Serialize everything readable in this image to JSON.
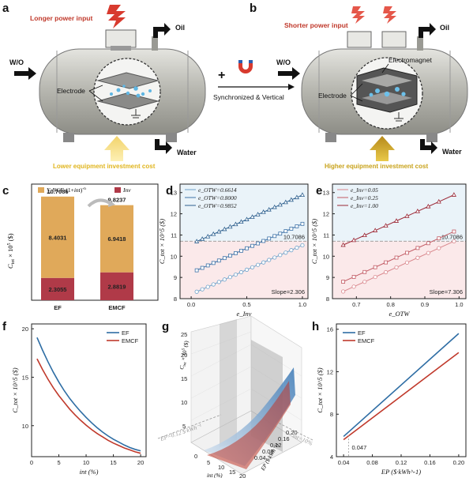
{
  "panel_a": {
    "letter": "a",
    "power_label": "Longer power input",
    "oil_label": "Oil",
    "wo_label": "W/O",
    "water_label": "Water",
    "electrode_label": "Electrode",
    "cost_label": "Lower equipment investment cost"
  },
  "panel_b": {
    "letter": "b",
    "power_label": "Shorter power input",
    "oil_label": "Oil",
    "wo_label": "W/O",
    "water_label": "Water",
    "electromagnet_label": "Electromagnet",
    "electrode_label": "Electrode",
    "cost_label": "Higher equipment investment cost"
  },
  "transition": {
    "plus": "+",
    "label": "Synchronized & Vertical"
  },
  "colors": {
    "ef_blue": "#2e6da4",
    "emcf_red": "#c0392b",
    "bar_orange": "#e0a95a",
    "bar_red": "#b03a48",
    "light_blue": "#6fa1c9",
    "med_blue": "#3f73a8",
    "dark_blue": "#2d5f8e",
    "pink": "#d9868c",
    "red_mid": "#c25a63",
    "red_dark": "#9b2735",
    "cost_gold": "#c8a21a",
    "power_red": "#c0392b"
  },
  "chart_data": [
    {
      "panel": "c",
      "type": "bar",
      "stacked": true,
      "categories": [
        "EF",
        "EMCF"
      ],
      "ylabel": "C_tot × 10^5 ($)",
      "legend": [
        "∑ NCF·(1+int)^-n",
        "Inv"
      ],
      "series": [
        {
          "name": "Inv",
          "values": [
            2.3055,
            2.8819
          ],
          "labels": [
            "2.3055",
            "2.8819"
          ]
        },
        {
          "name": "∑ NCF·(1+int)^-n",
          "values": [
            8.4031,
            6.9418
          ],
          "labels": [
            "8.4031",
            "6.9418"
          ]
        }
      ],
      "totals": [
        "10.7086",
        "9.8237"
      ],
      "ylim": [
        0,
        12
      ]
    },
    {
      "panel": "d",
      "type": "line",
      "xlabel": "e_Inv",
      "ylabel": "C_tot × 10^5 ($)",
      "xlim": [
        -0.1,
        1.05
      ],
      "ylim": [
        8,
        13.4
      ],
      "xticks": [
        "0.0",
        "0.5",
        "1.0"
      ],
      "yticks": [
        "8",
        "9",
        "10",
        "11",
        "12",
        "13"
      ],
      "x": [
        0.05,
        0.1,
        0.15,
        0.2,
        0.25,
        0.3,
        0.35,
        0.4,
        0.45,
        0.5,
        0.55,
        0.6,
        0.65,
        0.7,
        0.75,
        0.8,
        0.85,
        0.9,
        0.95,
        1.0
      ],
      "series": [
        {
          "name": "e_OTW=0.6614",
          "intercept": 8.21,
          "slope": 2.306
        },
        {
          "name": "e_OTW=0.8000",
          "intercept": 9.22,
          "slope": 2.306
        },
        {
          "name": "e_OTW=0.9852",
          "intercept": 10.58,
          "slope": 2.306
        }
      ],
      "reference_value": 10.7086,
      "reference_label": "10.7086",
      "annotation": "Slope=2.306"
    },
    {
      "panel": "e",
      "type": "line",
      "xlabel": "e_OTW",
      "ylabel": "C_tot × 10^5 ($)",
      "xlim": [
        0.63,
        1.02
      ],
      "ylim": [
        8,
        13.4
      ],
      "xticks": [
        "0.7",
        "0.8",
        "0.9",
        "1.0"
      ],
      "yticks": [
        "8",
        "9",
        "10",
        "11",
        "12",
        "13"
      ],
      "x": [
        0.6614,
        0.6925,
        0.724,
        0.755,
        0.786,
        0.817,
        0.848,
        0.879,
        0.91,
        0.941,
        0.9852
      ],
      "series": [
        {
          "name": "e_Inv=0.05",
          "intercept": 3.505,
          "slope": 7.306
        },
        {
          "name": "e_Inv=0.25",
          "intercept": 3.966,
          "slope": 7.306
        },
        {
          "name": "e_Inv=1.00",
          "intercept": 5.695,
          "slope": 7.306
        }
      ],
      "reference_value": 10.7086,
      "reference_label": "10.7086",
      "annotation": "Slope=7.306"
    },
    {
      "panel": "f",
      "type": "line",
      "xlabel": "int (%)",
      "ylabel": "C_tot × 10^5 ($)",
      "xlim": [
        0,
        21
      ],
      "ylim": [
        6.8,
        20.5
      ],
      "xticks": [
        "0",
        "5",
        "10",
        "15",
        "20"
      ],
      "yticks": [
        "10",
        "15",
        "20"
      ],
      "x": [
        1,
        2,
        3,
        4,
        5,
        6,
        7,
        8,
        9,
        10,
        11,
        12,
        13,
        14,
        15,
        16,
        17,
        18,
        19,
        20
      ],
      "series": [
        {
          "name": "EF",
          "values": [
            19.1,
            17.8,
            16.6,
            15.5,
            14.5,
            13.6,
            12.8,
            12.1,
            11.45,
            10.85,
            10.3,
            9.8,
            9.35,
            8.95,
            8.6,
            8.3,
            8.0,
            7.75,
            7.55,
            7.4
          ]
        },
        {
          "name": "EMCF",
          "values": [
            16.9,
            15.8,
            14.8,
            13.9,
            13.1,
            12.4,
            11.7,
            11.1,
            10.55,
            10.05,
            9.6,
            9.2,
            8.85,
            8.5,
            8.2,
            7.95,
            7.7,
            7.5,
            7.3,
            7.15
          ]
        }
      ]
    },
    {
      "panel": "g",
      "type": "surface",
      "xlabel": "int (%)",
      "ylabel": "EP ($·kWh^-1)",
      "zlabel": "C_tot × 10^5 ($)",
      "zticks": [
        "5",
        "10",
        "15",
        "20",
        "25"
      ],
      "xticks": [
        "0",
        "5",
        "10",
        "15",
        "20"
      ],
      "yticks": [
        "0.04",
        "0.08",
        "0.12",
        "0.16",
        "0.20"
      ],
      "slice_labels": [
        "EP=0.12 $·kWh^-1",
        "int=10%"
      ]
    },
    {
      "panel": "h",
      "type": "line",
      "xlabel": "EP ($·kWh^-1)",
      "ylabel": "C_tot × 10^5 ($)",
      "xlim": [
        0.03,
        0.21
      ],
      "ylim": [
        4,
        16.5
      ],
      "xticks": [
        "0.04",
        "0.08",
        "0.12",
        "0.16",
        "0.20"
      ],
      "yticks": [
        "4",
        "8",
        "12",
        "16"
      ],
      "x": [
        0.04,
        0.2
      ],
      "series": [
        {
          "name": "EF",
          "values": [
            5.9,
            15.6
          ]
        },
        {
          "name": "EMCF",
          "values": [
            5.6,
            13.8
          ]
        }
      ],
      "crossover_label": "0.047"
    }
  ]
}
